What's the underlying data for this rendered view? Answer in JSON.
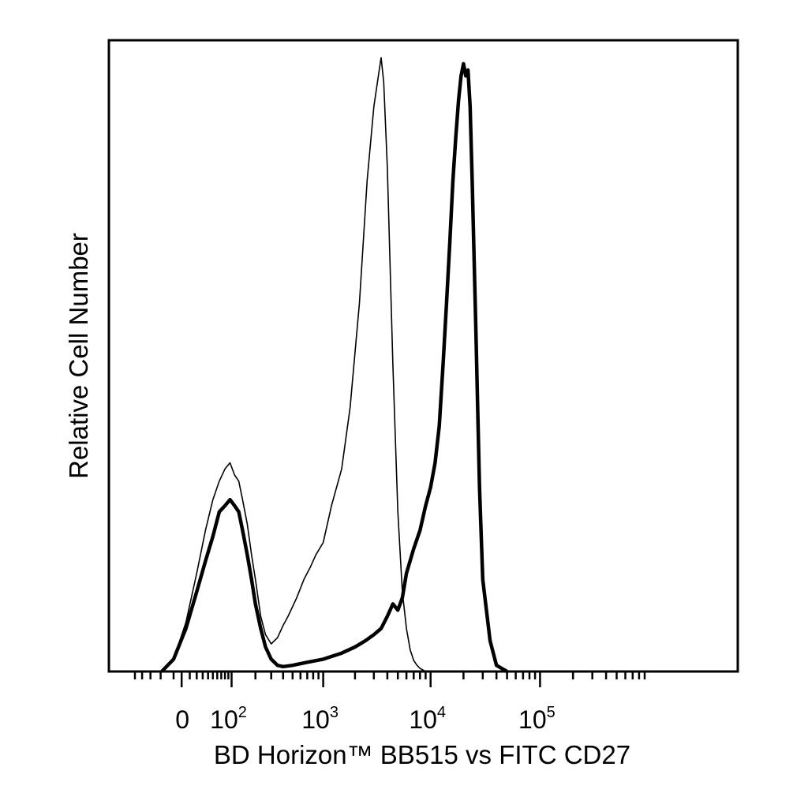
{
  "chart_data": {
    "type": "line",
    "xlabel": "BD Horizon™ BB515 vs FITC CD27",
    "ylabel": "Relative Cell Number",
    "x_scale": "biexponential",
    "xlim": [
      -40,
      250000
    ],
    "ylim": [
      0,
      1.0
    ],
    "y_ticks": "none",
    "grid": false,
    "legend": "none",
    "x_tick_labels": [
      {
        "value": 0,
        "base": "0",
        "exp": ""
      },
      {
        "value": 100,
        "base": "10",
        "exp": "2"
      },
      {
        "value": 1000,
        "base": "10",
        "exp": "3"
      },
      {
        "value": 10000,
        "base": "10",
        "exp": "4"
      },
      {
        "value": 100000,
        "base": "10",
        "exp": "5"
      }
    ],
    "series": [
      {
        "style": "thin",
        "color": "#000000",
        "x": [
          -28,
          -10,
          5,
          20,
          35,
          50,
          65,
          80,
          95,
          110,
          125,
          140,
          160,
          180,
          200,
          230,
          260,
          300,
          350,
          400,
          450,
          550,
          650,
          750,
          850,
          1000,
          1200,
          1500,
          1800,
          2200,
          2600,
          3000,
          3300,
          3500,
          3700,
          4000,
          4500,
          5000,
          5500,
          6000,
          6500,
          7000,
          7500,
          8000,
          9000
        ],
        "y": [
          0,
          0.02,
          0.08,
          0.16,
          0.23,
          0.28,
          0.31,
          0.33,
          0.34,
          0.32,
          0.31,
          0.28,
          0.24,
          0.19,
          0.15,
          0.09,
          0.06,
          0.045,
          0.055,
          0.075,
          0.09,
          0.12,
          0.15,
          0.17,
          0.19,
          0.21,
          0.27,
          0.33,
          0.43,
          0.6,
          0.8,
          0.92,
          0.97,
          1.0,
          0.96,
          0.82,
          0.5,
          0.26,
          0.13,
          0.07,
          0.035,
          0.018,
          0.01,
          0.005,
          0
        ]
      },
      {
        "style": "thick",
        "color": "#000000",
        "x": [
          -28,
          -10,
          5,
          20,
          35,
          50,
          65,
          80,
          95,
          110,
          125,
          140,
          160,
          180,
          200,
          230,
          260,
          300,
          350,
          400,
          500,
          700,
          1000,
          1500,
          2000,
          2500,
          3000,
          3500,
          4000,
          4500,
          5000,
          5500,
          6000,
          7000,
          8000,
          9000,
          10000,
          11000,
          12000,
          13000,
          14000,
          15000,
          16000,
          17000,
          18000,
          19000,
          20000,
          21000,
          22000,
          23000,
          24000,
          26000,
          28000,
          30000,
          35000,
          40000,
          50000
        ],
        "y": [
          0,
          0.02,
          0.07,
          0.13,
          0.18,
          0.22,
          0.26,
          0.27,
          0.28,
          0.27,
          0.26,
          0.23,
          0.19,
          0.15,
          0.11,
          0.07,
          0.04,
          0.02,
          0.01,
          0.008,
          0.01,
          0.015,
          0.02,
          0.03,
          0.04,
          0.05,
          0.06,
          0.07,
          0.09,
          0.11,
          0.1,
          0.12,
          0.16,
          0.2,
          0.23,
          0.27,
          0.3,
          0.34,
          0.4,
          0.5,
          0.6,
          0.7,
          0.8,
          0.87,
          0.93,
          0.97,
          0.99,
          0.97,
          0.98,
          0.92,
          0.8,
          0.55,
          0.3,
          0.15,
          0.05,
          0.01,
          0
        ]
      }
    ]
  }
}
